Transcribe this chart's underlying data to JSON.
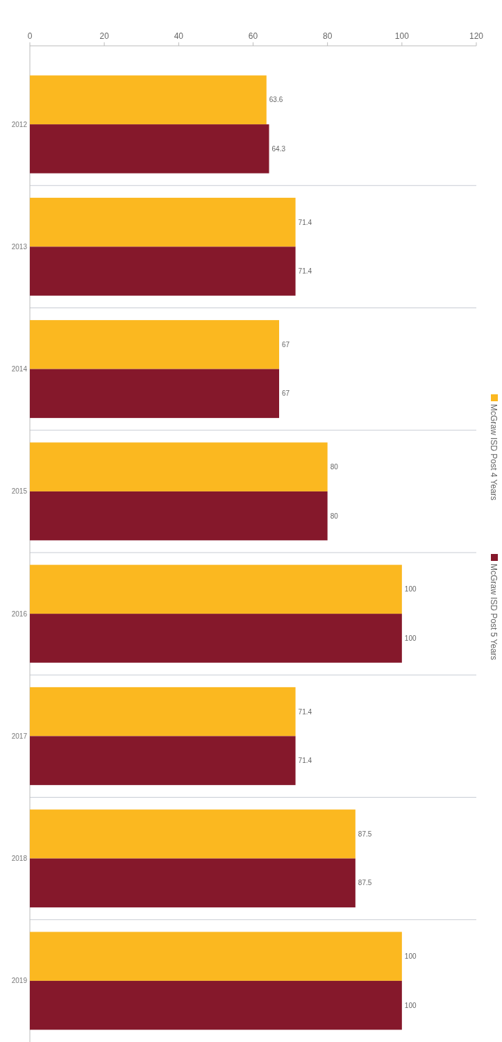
{
  "chart_data": {
    "type": "bar",
    "orientation": "horizontal",
    "categories": [
      "2012",
      "2013",
      "2014",
      "2015",
      "2016",
      "2017",
      "2018",
      "2019"
    ],
    "series": [
      {
        "name": "McGraw ISD Post 4 Years",
        "color": "#fbb820",
        "values": [
          63.6,
          71.4,
          67,
          80,
          100,
          71.4,
          87.5,
          100
        ]
      },
      {
        "name": "McGraw ISD Post 5 Years",
        "color": "#85182b",
        "values": [
          64.3,
          71.4,
          67,
          80,
          100,
          71.4,
          87.5,
          100
        ]
      }
    ],
    "xlim": [
      0,
      120
    ],
    "xticks": [
      0,
      20,
      40,
      60,
      80,
      100,
      120
    ],
    "grid": "y",
    "legend": "right",
    "data_labels": true
  }
}
